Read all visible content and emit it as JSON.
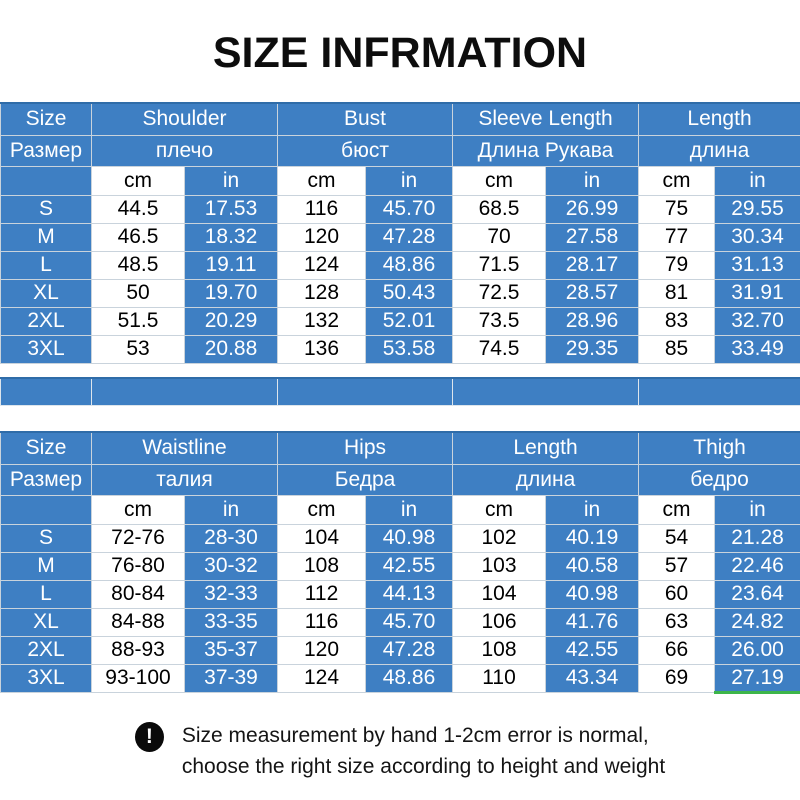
{
  "title": "SIZE INFRMATION",
  "colors": {
    "blue": "#3e7fc3",
    "blue_dark": "#2f6ca8",
    "grid": "#c9d3dc",
    "green": "#3db54a"
  },
  "units": {
    "cm": "cm",
    "in": "in"
  },
  "table1": {
    "columns": [
      {
        "en": "Size",
        "ru": "Размер"
      },
      {
        "en": "Shoulder",
        "ru": "плечо"
      },
      {
        "en": "Bust",
        "ru": "бюст"
      },
      {
        "en": "Sleeve Length",
        "ru": "Длина Рукава"
      },
      {
        "en": "Length",
        "ru": "длина"
      }
    ],
    "rows": [
      {
        "size": "S",
        "cells": [
          "44.5",
          "17.53",
          "116",
          "45.70",
          "68.5",
          "26.99",
          "75",
          "29.55"
        ]
      },
      {
        "size": "M",
        "cells": [
          "46.5",
          "18.32",
          "120",
          "47.28",
          "70",
          "27.58",
          "77",
          "30.34"
        ]
      },
      {
        "size": "L",
        "cells": [
          "48.5",
          "19.11",
          "124",
          "48.86",
          "71.5",
          "28.17",
          "79",
          "31.13"
        ]
      },
      {
        "size": "XL",
        "cells": [
          "50",
          "19.70",
          "128",
          "50.43",
          "72.5",
          "28.57",
          "81",
          "31.91"
        ]
      },
      {
        "size": "2XL",
        "cells": [
          "51.5",
          "20.29",
          "132",
          "52.01",
          "73.5",
          "28.96",
          "83",
          "32.70"
        ]
      },
      {
        "size": "3XL",
        "cells": [
          "53",
          "20.88",
          "136",
          "53.58",
          "74.5",
          "29.35",
          "85",
          "33.49"
        ]
      }
    ]
  },
  "table2": {
    "columns": [
      {
        "en": "Size",
        "ru": "Размер"
      },
      {
        "en": "Waistline",
        "ru": "талия"
      },
      {
        "en": "Hips",
        "ru": "Бедра"
      },
      {
        "en": "Length",
        "ru": "длина"
      },
      {
        "en": "Thigh",
        "ru": "бедро"
      }
    ],
    "rows": [
      {
        "size": "S",
        "cells": [
          "72-76",
          "28-30",
          "104",
          "40.98",
          "102",
          "40.19",
          "54",
          "21.28"
        ]
      },
      {
        "size": "M",
        "cells": [
          "76-80",
          "30-32",
          "108",
          "42.55",
          "103",
          "40.58",
          "57",
          "22.46"
        ]
      },
      {
        "size": "L",
        "cells": [
          "80-84",
          "32-33",
          "112",
          "44.13",
          "104",
          "40.98",
          "60",
          "23.64"
        ]
      },
      {
        "size": "XL",
        "cells": [
          "84-88",
          "33-35",
          "116",
          "45.70",
          "106",
          "41.76",
          "63",
          "24.82"
        ]
      },
      {
        "size": "2XL",
        "cells": [
          "88-93",
          "35-37",
          "120",
          "47.28",
          "108",
          "42.55",
          "66",
          "26.00"
        ]
      },
      {
        "size": "3XL",
        "cells": [
          "93-100",
          "37-39",
          "124",
          "48.86",
          "110",
          "43.34",
          "69",
          "27.19"
        ]
      }
    ]
  },
  "note": {
    "icon": "exclamation-icon",
    "icon_glyph": "!",
    "line1": "Size measurement by hand 1-2cm error is normal,",
    "line2": "choose the right size according to height and weight"
  }
}
